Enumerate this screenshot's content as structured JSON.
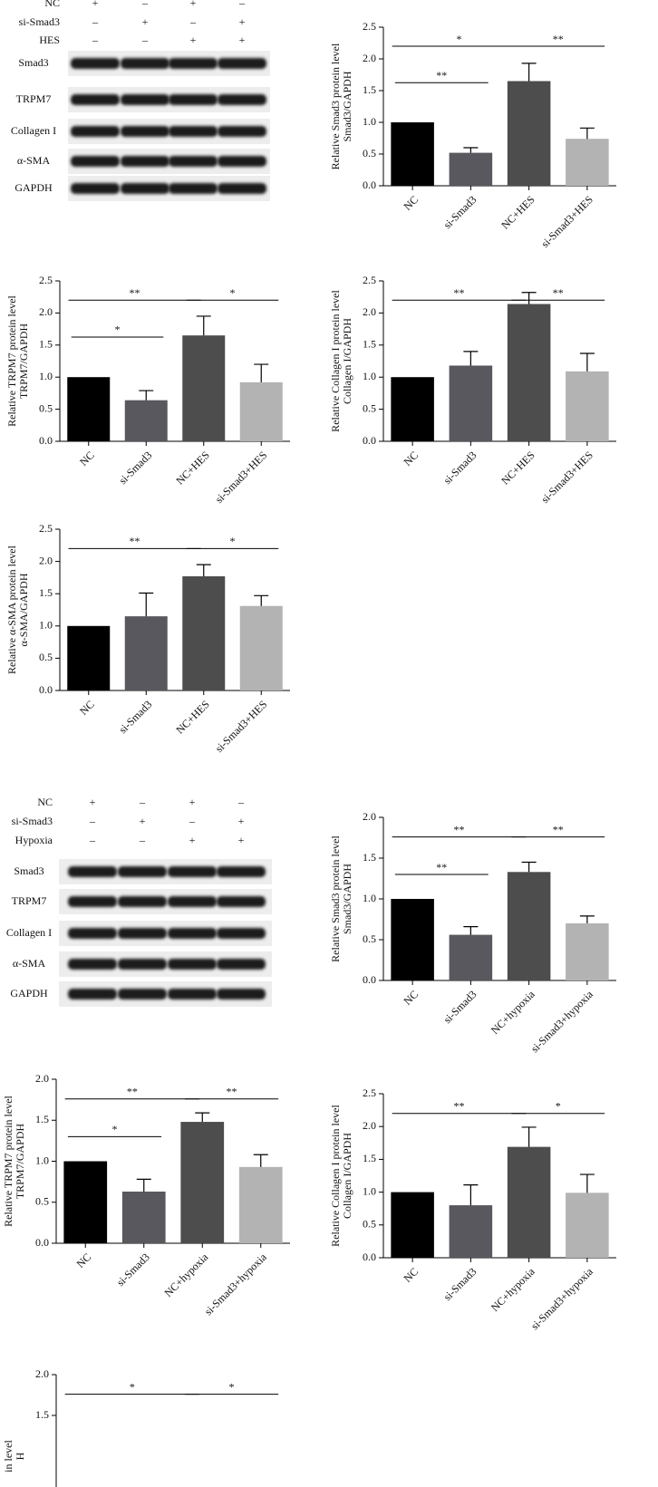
{
  "blots": [
    {
      "conditions": [
        {
          "label": "NC",
          "signs": [
            "+",
            "–",
            "+",
            "–"
          ]
        },
        {
          "label": "si-Smad3",
          "signs": [
            "–",
            "+",
            "–",
            "+"
          ]
        },
        {
          "label": "HES",
          "signs": [
            "–",
            "–",
            "+",
            "+"
          ]
        }
      ],
      "bands": [
        "Smad3",
        "TRPM7",
        "Collagen I",
        "α-SMA",
        "GAPDH"
      ]
    },
    {
      "conditions": [
        {
          "label": "NC",
          "signs": [
            "+",
            "–",
            "+",
            "–"
          ]
        },
        {
          "label": "si-Smad3",
          "signs": [
            "–",
            "+",
            "–",
            "+"
          ]
        },
        {
          "label": "Hypoxia",
          "signs": [
            "–",
            "–",
            "+",
            "+"
          ]
        }
      ],
      "bands": [
        "Smad3",
        "TRPM7",
        "Collagen I",
        "α-SMA",
        "GAPDH"
      ]
    }
  ],
  "chart_data": [
    {
      "type": "bar",
      "ylabel": [
        "Relative Smad3 protein level",
        "Smad3/GAPDH"
      ],
      "categories": [
        "NC",
        "si-Smad3",
        "NC+HES",
        "si-Smad3+HES"
      ],
      "values": [
        1.0,
        0.52,
        1.65,
        0.74
      ],
      "errors": [
        0,
        0.08,
        0.28,
        0.17
      ],
      "colors": [
        "#000000",
        "#58585e",
        "#4d4d4d",
        "#b3b3b3"
      ],
      "ylim": [
        0,
        2.5
      ],
      "yticks": [
        {
          "value": 0,
          "label": "0.0"
        },
        {
          "value": 0.5,
          "label": "0.5"
        },
        {
          "value": 1,
          "label": "1.0"
        },
        {
          "value": 1.5,
          "label": "1.5"
        },
        {
          "value": 2,
          "label": "2.0"
        },
        {
          "value": 2.5,
          "label": "2.5"
        }
      ],
      "annotations": [
        {
          "text": "**",
          "between": [
            0,
            1
          ]
        },
        {
          "text": "*",
          "between": [
            0,
            2
          ]
        },
        {
          "text": "**",
          "between": [
            2,
            3
          ]
        }
      ]
    },
    {
      "type": "bar",
      "ylabel": [
        "Relative TRPM7 protein level",
        "TRPM7/GAPDH"
      ],
      "categories": [
        "NC",
        "si-Smad3",
        "NC+HES",
        "si-Smad3+HES"
      ],
      "values": [
        1.0,
        0.64,
        1.65,
        0.92
      ],
      "errors": [
        0,
        0.15,
        0.3,
        0.28
      ],
      "colors": [
        "#000000",
        "#58585e",
        "#4d4d4d",
        "#b3b3b3"
      ],
      "ylim": [
        0,
        2.5
      ],
      "yticks": [
        {
          "value": 0,
          "label": "0.0"
        },
        {
          "value": 0.5,
          "label": "0.5"
        },
        {
          "value": 1,
          "label": "1.0"
        },
        {
          "value": 1.5,
          "label": "1.5"
        },
        {
          "value": 2,
          "label": "2.0"
        },
        {
          "value": 2.5,
          "label": "2.5"
        }
      ],
      "annotations": [
        {
          "text": "*",
          "between": [
            0,
            1
          ]
        },
        {
          "text": "**",
          "between": [
            0,
            2
          ]
        },
        {
          "text": "*",
          "between": [
            2,
            3
          ]
        }
      ]
    },
    {
      "type": "bar",
      "ylabel": [
        "Relative Collagen I protein level",
        "Collagen I/GAPDH"
      ],
      "categories": [
        "NC",
        "si-Smad3",
        "NC+HES",
        "si-Smad3+HES"
      ],
      "values": [
        1.0,
        1.18,
        2.14,
        1.09
      ],
      "errors": [
        0,
        0.22,
        0.18,
        0.28
      ],
      "colors": [
        "#000000",
        "#58585e",
        "#4d4d4d",
        "#b3b3b3"
      ],
      "ylim": [
        0,
        2.5
      ],
      "yticks": [
        {
          "value": 0,
          "label": "0.0"
        },
        {
          "value": 0.5,
          "label": "0.5"
        },
        {
          "value": 1,
          "label": "1.0"
        },
        {
          "value": 1.5,
          "label": "1.5"
        },
        {
          "value": 2,
          "label": "2.0"
        },
        {
          "value": 2.5,
          "label": "2.5"
        }
      ],
      "annotations": [
        {
          "text": "**",
          "between": [
            0,
            2
          ]
        },
        {
          "text": "**",
          "between": [
            2,
            3
          ]
        }
      ]
    },
    {
      "type": "bar",
      "ylabel": [
        "Relative α-SMA protein level",
        "α-SMA/GAPDH"
      ],
      "categories": [
        "NC",
        "si-Smad3",
        "NC+HES",
        "si-Smad3+HES"
      ],
      "values": [
        1.0,
        1.15,
        1.77,
        1.31
      ],
      "errors": [
        0,
        0.36,
        0.18,
        0.16
      ],
      "colors": [
        "#000000",
        "#58585e",
        "#4d4d4d",
        "#b3b3b3"
      ],
      "ylim": [
        0,
        2.5
      ],
      "yticks": [
        {
          "value": 0,
          "label": "0.0"
        },
        {
          "value": 0.5,
          "label": "0.5"
        },
        {
          "value": 1,
          "label": "1.0"
        },
        {
          "value": 1.5,
          "label": "1.5"
        },
        {
          "value": 2,
          "label": "2.0"
        },
        {
          "value": 2.5,
          "label": "2.5"
        }
      ],
      "annotations": [
        {
          "text": "**",
          "between": [
            0,
            2
          ]
        },
        {
          "text": "*",
          "between": [
            2,
            3
          ]
        }
      ]
    },
    {
      "type": "bar",
      "ylabel": [
        "Relative Smad3 protein level",
        "Smad3/GAPDH"
      ],
      "categories": [
        "NC",
        "si-Smad3",
        "NC+hypoxia",
        "si-Smad3+hypoxia"
      ],
      "values": [
        1.0,
        0.56,
        1.33,
        0.7
      ],
      "errors": [
        0,
        0.1,
        0.12,
        0.09
      ],
      "colors": [
        "#000000",
        "#58585e",
        "#4d4d4d",
        "#b3b3b3"
      ],
      "ylim": [
        0,
        2
      ],
      "yticks": [
        {
          "value": 0,
          "label": "0.0"
        },
        {
          "value": 0.5,
          "label": "0.5"
        },
        {
          "value": 1,
          "label": "1.0"
        },
        {
          "value": 1.5,
          "label": "1.5"
        },
        {
          "value": 2,
          "label": "2.0"
        }
      ],
      "annotations": [
        {
          "text": "**",
          "between": [
            0,
            1
          ]
        },
        {
          "text": "**",
          "between": [
            0,
            2
          ]
        },
        {
          "text": "**",
          "between": [
            2,
            3
          ]
        }
      ]
    },
    {
      "type": "bar",
      "ylabel": [
        "Relative TRPM7 protein level",
        "TRPM7/GAPDH"
      ],
      "categories": [
        "NC",
        "si-Smad3",
        "NC+hypoxia",
        "si-Smad3+hypoxia"
      ],
      "values": [
        1.0,
        0.63,
        1.48,
        0.93
      ],
      "errors": [
        0,
        0.15,
        0.11,
        0.15
      ],
      "colors": [
        "#000000",
        "#58585e",
        "#4d4d4d",
        "#b3b3b3"
      ],
      "ylim": [
        0,
        2
      ],
      "yticks": [
        {
          "value": 0,
          "label": "0.0"
        },
        {
          "value": 0.5,
          "label": "0.5"
        },
        {
          "value": 1,
          "label": "1.0"
        },
        {
          "value": 1.5,
          "label": "1.5"
        },
        {
          "value": 2,
          "label": "2.0"
        }
      ],
      "annotations": [
        {
          "text": "*",
          "between": [
            0,
            1
          ]
        },
        {
          "text": "**",
          "between": [
            0,
            2
          ]
        },
        {
          "text": "**",
          "between": [
            2,
            3
          ]
        }
      ]
    },
    {
      "type": "bar",
      "ylabel": [
        "Relative Collagen I protein level",
        "Collagen I/GAPDH"
      ],
      "categories": [
        "NC",
        "si-Smad3",
        "NC+hypoxia",
        "si-Smad3+hypoxia"
      ],
      "values": [
        1.0,
        0.8,
        1.69,
        0.99
      ],
      "errors": [
        0,
        0.31,
        0.3,
        0.28
      ],
      "colors": [
        "#000000",
        "#58585e",
        "#4d4d4d",
        "#b3b3b3"
      ],
      "ylim": [
        0,
        2.5
      ],
      "yticks": [
        {
          "value": 0,
          "label": "0.0"
        },
        {
          "value": 0.5,
          "label": "0.5"
        },
        {
          "value": 1,
          "label": "1.0"
        },
        {
          "value": 1.5,
          "label": "1.5"
        },
        {
          "value": 2,
          "label": "2.0"
        },
        {
          "value": 2.5,
          "label": "2.5"
        }
      ],
      "annotations": [
        {
          "text": "**",
          "between": [
            0,
            2
          ]
        },
        {
          "text": "*",
          "between": [
            2,
            3
          ]
        }
      ]
    },
    {
      "type": "bar",
      "ylabel": [
        "in level",
        "H"
      ],
      "ylim": [
        0,
        2
      ],
      "yticks": [
        {
          "value": 1.5,
          "label": "1.5"
        },
        {
          "value": 2,
          "label": "2.0"
        }
      ],
      "annotations": [
        {
          "text": "*",
          "between": [
            0,
            2
          ]
        },
        {
          "text": "*",
          "between": [
            2,
            3
          ]
        }
      ]
    }
  ]
}
